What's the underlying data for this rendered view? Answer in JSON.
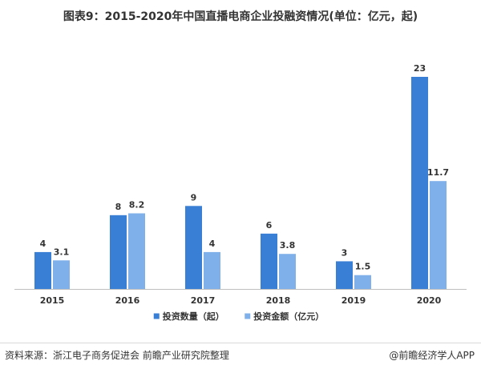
{
  "chart_data": {
    "type": "bar",
    "title": "图表9：2015-2020年中国直播电商企业投融资情况(单位：亿元，起)",
    "categories": [
      "2015",
      "2016",
      "2017",
      "2018",
      "2019",
      "2020"
    ],
    "series": [
      {
        "name": "投资数量（起）",
        "values": [
          4,
          8,
          9,
          6,
          3,
          23
        ],
        "labels": [
          "4",
          "8",
          "9",
          "6",
          "3",
          "23"
        ],
        "color": "#3a7fd6"
      },
      {
        "name": "投资金额（亿元）",
        "values": [
          3.1,
          8.2,
          4,
          3.8,
          1.5,
          11.7
        ],
        "labels": [
          "3.1",
          "8.2",
          "4",
          "3.8",
          "1.5",
          "11.7"
        ],
        "color": "#7fb0ea"
      }
    ],
    "ylim": [
      0,
      23
    ],
    "grid": false,
    "legend_position": "bottom"
  },
  "footer": {
    "source": "资料来源：浙江电子商务促进会 前瞻产业研究院整理",
    "brand": "@前瞻经济学人APP"
  }
}
